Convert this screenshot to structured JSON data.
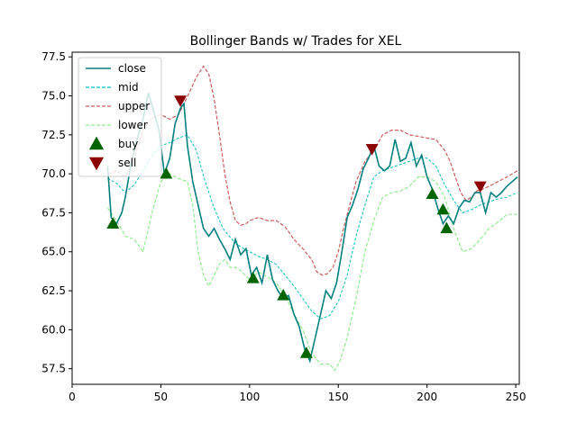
{
  "chart_data": {
    "type": "line",
    "title": "Bollinger Bands w/ Trades for XEL",
    "xlabel": "",
    "ylabel": "",
    "xlim": [
      0,
      252
    ],
    "ylim": [
      56.5,
      77.8
    ],
    "xticks": [
      0,
      50,
      100,
      150,
      200,
      250
    ],
    "yticks": [
      57.5,
      60.0,
      62.5,
      65.0,
      67.5,
      70.0,
      72.5,
      75.0,
      77.5
    ],
    "legend_position": "upper-left",
    "colors": {
      "close": "#008080",
      "mid": "#00bfc4",
      "upper": "#cd5c5c",
      "lower": "#90ee90",
      "buy": "#006400",
      "sell": "#8b0000"
    },
    "legend": [
      {
        "key": "close",
        "label": "close",
        "kind": "line"
      },
      {
        "key": "mid",
        "label": "mid",
        "kind": "dashed"
      },
      {
        "key": "upper",
        "label": "upper",
        "kind": "dashed"
      },
      {
        "key": "lower",
        "label": "lower",
        "kind": "dashed"
      },
      {
        "key": "buy",
        "label": "buy",
        "kind": "triangle-up"
      },
      {
        "key": "sell",
        "label": "sell",
        "kind": "triangle-down"
      }
    ],
    "series": [
      {
        "name": "close",
        "x": [
          20,
          22,
          25,
          28,
          30,
          33,
          36,
          40,
          43,
          46,
          49,
          52,
          55,
          58,
          61,
          63,
          65,
          68,
          71,
          74,
          77,
          80,
          83,
          86,
          89,
          92,
          95,
          98,
          101,
          104,
          107,
          110,
          113,
          116,
          119,
          122,
          125,
          128,
          131,
          134,
          137,
          140,
          143,
          146,
          149,
          152,
          155,
          158,
          161,
          164,
          167,
          170,
          173,
          176,
          179,
          182,
          185,
          188,
          191,
          194,
          197,
          200,
          203,
          206,
          209,
          212,
          215,
          218,
          221,
          224,
          227,
          230,
          233,
          236,
          239,
          242,
          245,
          248,
          251
        ],
        "values": [
          70.5,
          67.2,
          66.8,
          67.5,
          68.5,
          70.5,
          72.0,
          73.5,
          75.2,
          74.0,
          72.8,
          70.0,
          71.0,
          73.2,
          74.2,
          74.5,
          71.8,
          69.5,
          68.0,
          66.5,
          66.0,
          66.5,
          65.8,
          65.2,
          64.5,
          65.8,
          64.8,
          65.2,
          63.5,
          64.0,
          63.0,
          64.8,
          63.2,
          62.5,
          62.0,
          62.2,
          61.0,
          60.2,
          58.8,
          58.0,
          59.5,
          61.0,
          62.5,
          62.0,
          63.0,
          65.0,
          67.2,
          68.0,
          69.0,
          70.3,
          71.0,
          71.8,
          70.5,
          70.2,
          70.5,
          72.2,
          70.8,
          71.0,
          72.0,
          70.5,
          71.2,
          69.8,
          69.0,
          67.8,
          66.8,
          67.3,
          66.8,
          67.8,
          68.3,
          68.2,
          68.8,
          68.8,
          67.5,
          68.8,
          68.5,
          68.8,
          69.2,
          69.5,
          69.8
        ]
      },
      {
        "name": "mid",
        "x": [
          20,
          25,
          30,
          35,
          40,
          45,
          50,
          55,
          60,
          65,
          70,
          75,
          80,
          85,
          90,
          95,
          100,
          105,
          110,
          115,
          120,
          125,
          130,
          135,
          140,
          145,
          150,
          155,
          160,
          165,
          170,
          175,
          180,
          185,
          190,
          195,
          200,
          205,
          210,
          215,
          220,
          225,
          230,
          235,
          240,
          245,
          251
        ],
        "values": [
          69.7,
          69.4,
          68.8,
          69.3,
          70.2,
          71.2,
          71.8,
          72.0,
          72.3,
          72.5,
          71.5,
          69.5,
          67.8,
          66.5,
          65.8,
          65.3,
          65.0,
          64.7,
          64.5,
          64.2,
          63.5,
          62.8,
          62.0,
          61.2,
          60.7,
          60.9,
          61.8,
          63.5,
          66.0,
          68.0,
          69.8,
          70.2,
          70.4,
          70.6,
          70.8,
          71.0,
          71.0,
          70.5,
          69.3,
          68.3,
          67.5,
          67.7,
          68.0,
          68.2,
          68.4,
          68.5,
          68.8
        ]
      },
      {
        "name": "upper",
        "x": [
          20,
          25,
          30,
          35,
          40,
          45,
          50,
          55,
          60,
          63,
          66,
          70,
          74,
          77,
          80,
          83,
          86,
          89,
          92,
          95,
          98,
          100,
          105,
          110,
          115,
          120,
          125,
          130,
          135,
          138,
          141,
          144,
          147,
          150,
          153,
          156,
          160,
          165,
          170,
          175,
          180,
          185,
          190,
          195,
          200,
          205,
          210,
          213,
          216,
          219,
          222,
          225,
          228,
          231,
          235,
          240,
          245,
          251
        ],
        "values": [
          70.0,
          70.2,
          69.8,
          71.0,
          72.8,
          73.6,
          73.8,
          73.5,
          73.8,
          74.5,
          75.2,
          76.2,
          76.9,
          76.4,
          74.8,
          72.5,
          70.0,
          68.2,
          67.0,
          66.7,
          66.8,
          67.0,
          67.2,
          67.0,
          67.0,
          66.6,
          65.8,
          65.2,
          64.5,
          63.7,
          63.5,
          63.6,
          64.0,
          65.0,
          66.5,
          67.8,
          69.5,
          70.8,
          71.5,
          72.5,
          72.8,
          72.8,
          72.5,
          72.4,
          72.3,
          72.2,
          71.5,
          70.8,
          69.8,
          68.8,
          68.3,
          68.5,
          68.9,
          69.0,
          69.2,
          69.5,
          69.8,
          70.2
        ]
      },
      {
        "name": "lower",
        "x": [
          20,
          25,
          30,
          35,
          40,
          45,
          50,
          55,
          60,
          65,
          68,
          71,
          74,
          77,
          80,
          83,
          86,
          89,
          92,
          95,
          100,
          105,
          110,
          115,
          120,
          125,
          130,
          135,
          140,
          145,
          148,
          151,
          155,
          160,
          165,
          170,
          175,
          180,
          185,
          190,
          195,
          200,
          205,
          210,
          215,
          220,
          225,
          230,
          235,
          240,
          245,
          251
        ],
        "values": [
          67.8,
          67.0,
          66.0,
          65.8,
          65.0,
          67.5,
          69.5,
          70.0,
          69.7,
          69.5,
          68.0,
          65.0,
          63.5,
          62.8,
          63.5,
          64.2,
          64.5,
          64.0,
          64.0,
          63.8,
          63.2,
          63.7,
          63.4,
          63.0,
          62.2,
          61.0,
          60.0,
          58.5,
          57.8,
          57.8,
          57.4,
          58.0,
          59.5,
          62.0,
          65.0,
          67.0,
          68.5,
          68.8,
          68.9,
          69.2,
          69.8,
          69.8,
          69.5,
          68.5,
          66.5,
          65.0,
          65.2,
          65.8,
          66.5,
          66.9,
          67.4,
          67.4
        ]
      },
      {
        "name": "buy",
        "x": [
          23,
          53,
          102,
          119,
          132,
          203,
          209,
          211
        ],
        "values": [
          66.8,
          70.0,
          63.3,
          62.2,
          58.5,
          68.7,
          67.7,
          66.5
        ]
      },
      {
        "name": "sell",
        "x": [
          61,
          169,
          230
        ],
        "values": [
          74.7,
          71.6,
          69.2
        ]
      }
    ]
  }
}
